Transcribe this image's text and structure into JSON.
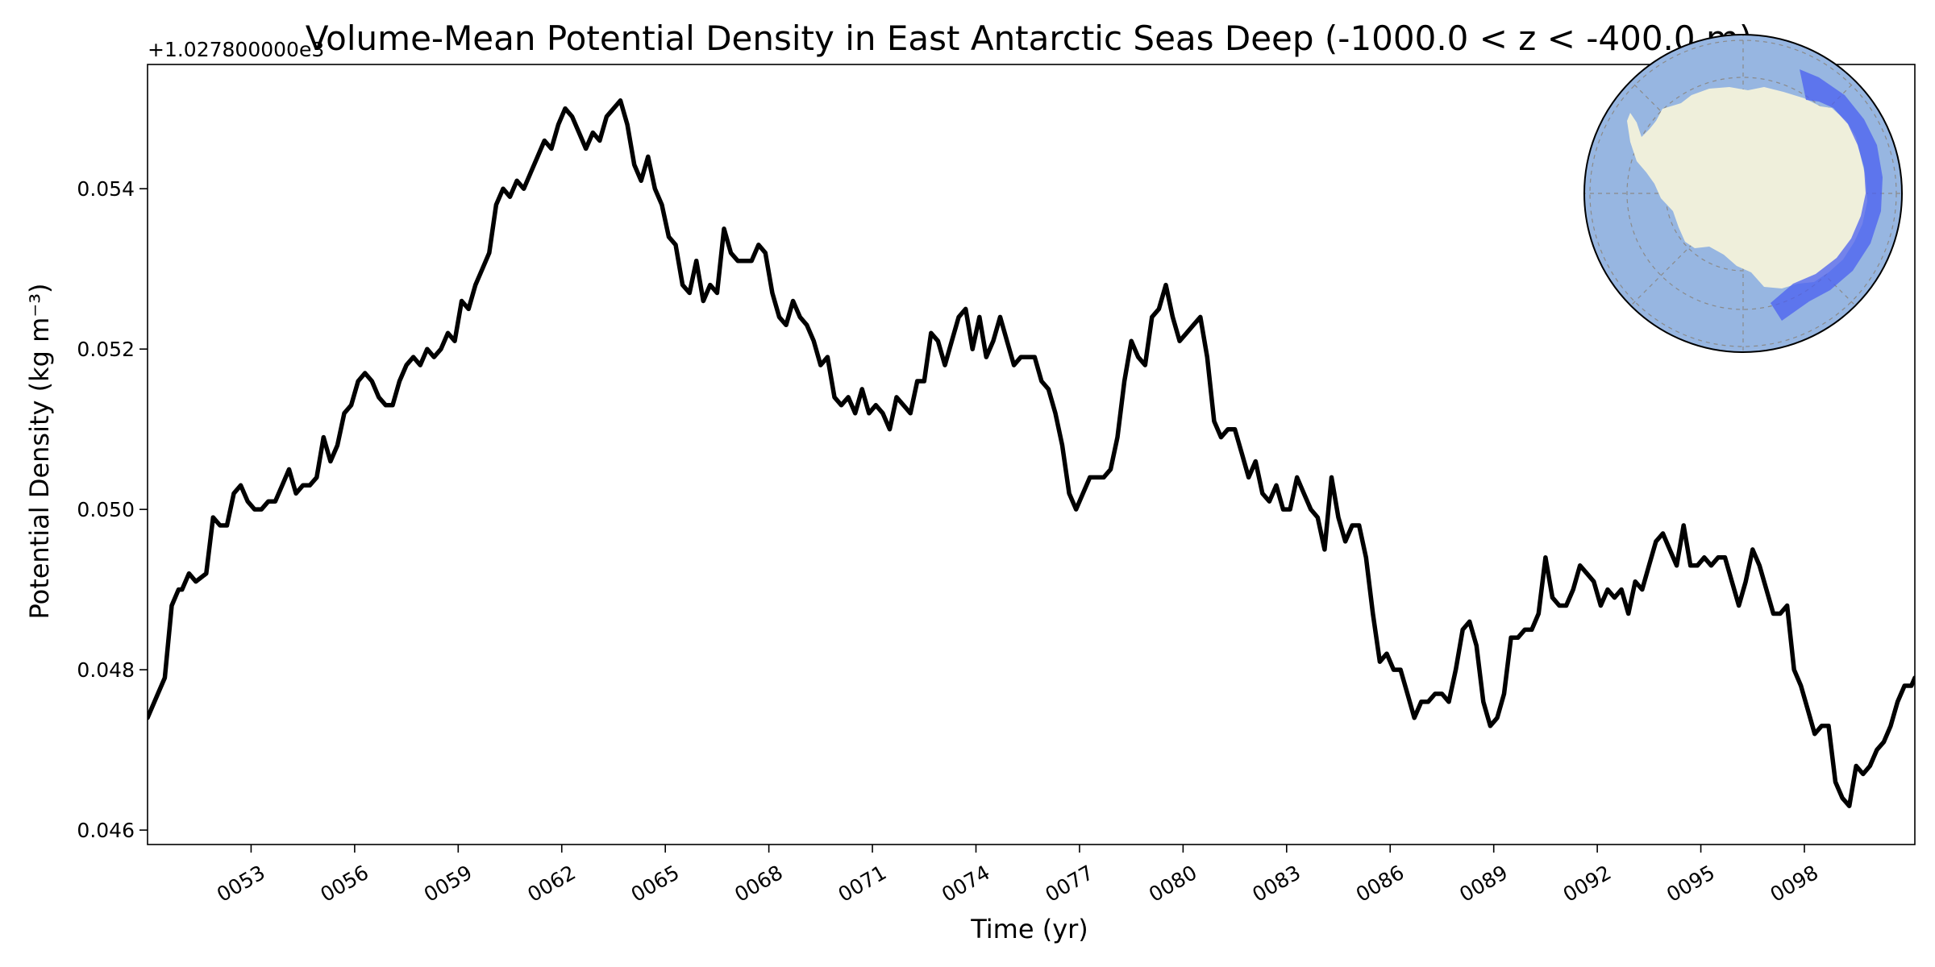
{
  "chart_data": {
    "type": "line",
    "title": "Volume-Mean Potential Density in East Antarctic Seas Deep (-1000.0 < z < -400.0 m)",
    "xlabel": "Time (yr)",
    "ylabel": "Potential Density (kg m⁻³)",
    "offset_label": "+1.027800000e3",
    "xlim": [
      50,
      101.2
    ],
    "ylim": [
      0.04582,
      0.05555
    ],
    "x_ticks": [
      53,
      56,
      59,
      62,
      65,
      68,
      71,
      74,
      77,
      80,
      83,
      86,
      89,
      92,
      95,
      98
    ],
    "x_tick_labels": [
      "0053",
      "0056",
      "0059",
      "0062",
      "0065",
      "0068",
      "0071",
      "0074",
      "0077",
      "0080",
      "0083",
      "0086",
      "0089",
      "0092",
      "0095",
      "0098"
    ],
    "y_ticks": [
      0.046,
      0.048,
      0.05,
      0.052,
      0.054
    ],
    "y_tick_labels": [
      "0.046",
      "0.048",
      "0.050",
      "0.052",
      "0.054"
    ],
    "grid": false,
    "legend": "none",
    "line_color": "#000000",
    "inset_map": {
      "projection": "south-polar stereographic",
      "ocean_color": "#97b6e1",
      "land_color": "#efefdb",
      "region_color": "#4a5ff0",
      "region": "East Antarctic Seas"
    },
    "series": [
      {
        "x": [
          50.0,
          50.3,
          50.5,
          50.7,
          50.9,
          51.0,
          51.2,
          51.4,
          51.7,
          51.9,
          52.1,
          52.3,
          52.5,
          52.7,
          52.9,
          53.1,
          53.3,
          53.5,
          53.7,
          53.9,
          54.1,
          54.3,
          54.5,
          54.7,
          54.9,
          55.1,
          55.3,
          55.5,
          55.7,
          55.9,
          56.1,
          56.3,
          56.5,
          56.7,
          56.9,
          57.1,
          57.3,
          57.5,
          57.7,
          57.9,
          58.1,
          58.3,
          58.5,
          58.7,
          58.9,
          59.1,
          59.3,
          59.5,
          59.7,
          59.9,
          60.1,
          60.3,
          60.5,
          60.7,
          60.9,
          61.1,
          61.3,
          61.5,
          61.7,
          61.9,
          62.1,
          62.3,
          62.5,
          62.7,
          62.9,
          63.1,
          63.3,
          63.5,
          63.7,
          63.9,
          64.1,
          64.3,
          64.5,
          64.7,
          64.9,
          65.1,
          65.3,
          65.5,
          65.7,
          65.9,
          66.1,
          66.3,
          66.5,
          66.7,
          66.9,
          67.1,
          67.3,
          67.5,
          67.7,
          67.9,
          68.1,
          68.3,
          68.5,
          68.7,
          68.9,
          69.1,
          69.3,
          69.5,
          69.7,
          69.9,
          70.1,
          70.3,
          70.5,
          70.7,
          70.9,
          71.1,
          71.3,
          71.5,
          71.7,
          71.9,
          72.1,
          72.3,
          72.5,
          72.7,
          72.9,
          73.1,
          73.3,
          73.5,
          73.7,
          73.9,
          74.1,
          74.3,
          74.5,
          74.7,
          74.9,
          75.1,
          75.3,
          75.5,
          75.7,
          75.9,
          76.1,
          76.3,
          76.5,
          76.7,
          76.9,
          77.1,
          77.3,
          77.5,
          77.7,
          77.9,
          78.1,
          78.3,
          78.5,
          78.7,
          78.9,
          79.1,
          79.3,
          79.5,
          79.7,
          79.9,
          80.1,
          80.3,
          80.5,
          80.7,
          80.9,
          81.1,
          81.3,
          81.5,
          81.7,
          81.9,
          82.1,
          82.3,
          82.5,
          82.7,
          82.9,
          83.1,
          83.3,
          83.5,
          83.7,
          83.9,
          84.1,
          84.3,
          84.5,
          84.7,
          84.9,
          85.1,
          85.3,
          85.5,
          85.7,
          85.9,
          86.1,
          86.3,
          86.5,
          86.7,
          86.9,
          87.1,
          87.3,
          87.5,
          87.7,
          87.9,
          88.1,
          88.3,
          88.5,
          88.7,
          88.9,
          89.1,
          89.3,
          89.5,
          89.7,
          89.9,
          90.1,
          90.3,
          90.5,
          90.7,
          90.9,
          91.1,
          91.3,
          91.5,
          91.7,
          91.9,
          92.1,
          92.3,
          92.5,
          92.7,
          92.9,
          93.1,
          93.3,
          93.5,
          93.7,
          93.9,
          94.1,
          94.3,
          94.5,
          94.7,
          94.9,
          95.1,
          95.3,
          95.5,
          95.7,
          95.9,
          96.1,
          96.3,
          96.5,
          96.7,
          96.9,
          97.1,
          97.3,
          97.5,
          97.7,
          97.9,
          98.1,
          98.3,
          98.5,
          98.7,
          98.9,
          99.1,
          99.3,
          99.5,
          99.7,
          99.9,
          100.1,
          100.3,
          100.5,
          100.7,
          100.9,
          101.1,
          101.2
        ],
        "values": [
          0.0474,
          0.0477,
          0.0479,
          0.0488,
          0.049,
          0.049,
          0.0492,
          0.0491,
          0.0492,
          0.0499,
          0.0498,
          0.0498,
          0.0502,
          0.0503,
          0.0501,
          0.05,
          0.05,
          0.0501,
          0.0501,
          0.0503,
          0.0505,
          0.0502,
          0.0503,
          0.0503,
          0.0504,
          0.0509,
          0.0506,
          0.0508,
          0.0512,
          0.0513,
          0.0516,
          0.0517,
          0.0516,
          0.0514,
          0.0513,
          0.0513,
          0.0516,
          0.0518,
          0.0519,
          0.0518,
          0.052,
          0.0519,
          0.052,
          0.0522,
          0.0521,
          0.0526,
          0.0525,
          0.0528,
          0.053,
          0.0532,
          0.0538,
          0.054,
          0.0539,
          0.0541,
          0.054,
          0.0542,
          0.0544,
          0.0546,
          0.0545,
          0.0548,
          0.055,
          0.0549,
          0.0547,
          0.0545,
          0.0547,
          0.0546,
          0.0549,
          0.055,
          0.0551,
          0.0548,
          0.0543,
          0.0541,
          0.0544,
          0.054,
          0.0538,
          0.0534,
          0.0533,
          0.0528,
          0.0527,
          0.0531,
          0.0526,
          0.0528,
          0.0527,
          0.0535,
          0.0532,
          0.0531,
          0.0531,
          0.0531,
          0.0533,
          0.0532,
          0.0527,
          0.0524,
          0.0523,
          0.0526,
          0.0524,
          0.0523,
          0.0521,
          0.0518,
          0.0519,
          0.0514,
          0.0513,
          0.0514,
          0.0512,
          0.0515,
          0.0512,
          0.0513,
          0.0512,
          0.051,
          0.0514,
          0.0513,
          0.0512,
          0.0516,
          0.0516,
          0.0522,
          0.0521,
          0.0518,
          0.0521,
          0.0524,
          0.0525,
          0.052,
          0.0524,
          0.0519,
          0.0521,
          0.0524,
          0.0521,
          0.0518,
          0.0519,
          0.0519,
          0.0519,
          0.0516,
          0.0515,
          0.0512,
          0.0508,
          0.0502,
          0.05,
          0.0502,
          0.0504,
          0.0504,
          0.0504,
          0.0505,
          0.0509,
          0.0516,
          0.0521,
          0.0519,
          0.0518,
          0.0524,
          0.0525,
          0.0528,
          0.0524,
          0.0521,
          0.0522,
          0.0523,
          0.0524,
          0.0519,
          0.0511,
          0.0509,
          0.051,
          0.051,
          0.0507,
          0.0504,
          0.0506,
          0.0502,
          0.0501,
          0.0503,
          0.05,
          0.05,
          0.0504,
          0.0502,
          0.05,
          0.0499,
          0.0495,
          0.0504,
          0.0499,
          0.0496,
          0.0498,
          0.0498,
          0.0494,
          0.0487,
          0.0481,
          0.0482,
          0.048,
          0.048,
          0.0477,
          0.0474,
          0.0476,
          0.0476,
          0.0477,
          0.0477,
          0.0476,
          0.048,
          0.0485,
          0.0486,
          0.0483,
          0.0476,
          0.0473,
          0.0474,
          0.0477,
          0.0484,
          0.0484,
          0.0485,
          0.0485,
          0.0487,
          0.0494,
          0.0489,
          0.0488,
          0.0488,
          0.049,
          0.0493,
          0.0492,
          0.0491,
          0.0488,
          0.049,
          0.0489,
          0.049,
          0.0487,
          0.0491,
          0.049,
          0.0493,
          0.0496,
          0.0497,
          0.0495,
          0.0493,
          0.0498,
          0.0493,
          0.0493,
          0.0494,
          0.0493,
          0.0494,
          0.0494,
          0.0491,
          0.0488,
          0.0491,
          0.0495,
          0.0493,
          0.049,
          0.0487,
          0.0487,
          0.0488,
          0.048,
          0.0478,
          0.0475,
          0.0472,
          0.0473,
          0.0473,
          0.0466,
          0.0464,
          0.0463,
          0.0468,
          0.0467,
          0.0468,
          0.047,
          0.0471,
          0.0473,
          0.0476,
          0.0478,
          0.0478,
          0.0479
        ]
      }
    ]
  }
}
